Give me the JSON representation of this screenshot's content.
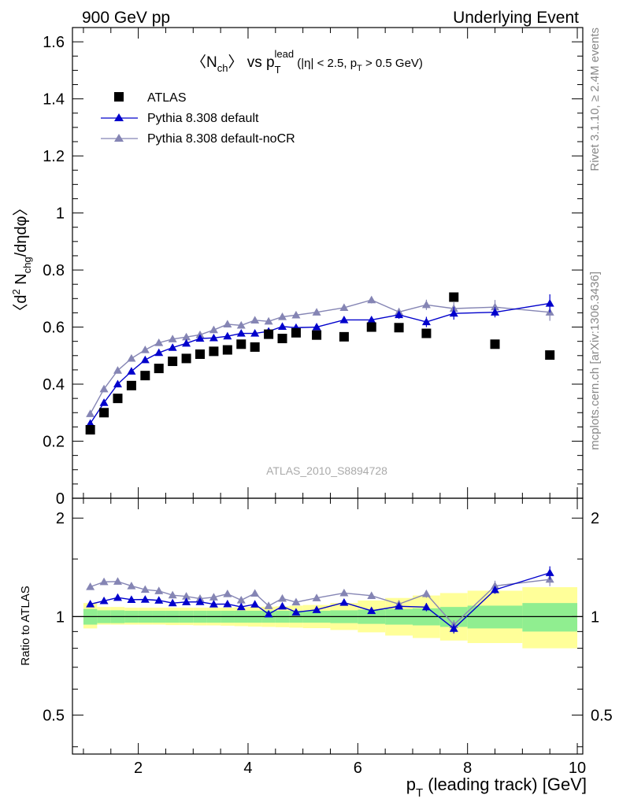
{
  "header": {
    "left": "900 GeV pp",
    "right": "Underlying Event"
  },
  "side_text": {
    "rivet": "Rivet 3.1.10, ≥ 2.4M events",
    "mcplots": "mcplots.cern.ch [arXiv:1306.3436]"
  },
  "watermark": "ATLAS_2010_S8894728",
  "title": {
    "n": "〈N",
    "n_sub": "ch",
    "vs": "〉 vs p",
    "p_sub": "T",
    "p_sup": "lead",
    "cuts_a": " (|η| < 2.5, p",
    "cuts_sub": "T",
    "cuts_b": " > 0.5 GeV)"
  },
  "ylabel_main": {
    "a": "〈d",
    "sup": "2",
    "b": " N",
    "sub": "chg",
    "c": "/dηdφ〉"
  },
  "ylabel_ratio": "Ratio to ATLAS",
  "xlabel": {
    "p": "p",
    "sub": "T",
    "rest": " (leading track) [GeV]"
  },
  "legend": [
    {
      "label": "ATLAS",
      "color": "#000000",
      "marker": "square"
    },
    {
      "label": "Pythia 8.308 default",
      "color": "#0000cc",
      "marker": "triangle"
    },
    {
      "label": "Pythia 8.308 default-noCR",
      "color": "#8585b4",
      "marker": "triangle"
    }
  ],
  "chart_data": {
    "type": "scatter",
    "xlim": [
      0.8,
      10.1
    ],
    "ylim": [
      0,
      1.65
    ],
    "ratio_ylim": [
      0.38,
      2.3
    ],
    "ratio_scale": "log",
    "x_ticks": [
      2,
      4,
      6,
      8,
      10
    ],
    "y_ticks": [
      0,
      0.2,
      0.4,
      0.6,
      0.8,
      1,
      1.2,
      1.4,
      1.6
    ],
    "ratio_ticks": [
      0.5,
      1,
      2
    ],
    "x": [
      1.125,
      1.375,
      1.625,
      1.875,
      2.125,
      2.375,
      2.625,
      2.875,
      3.125,
      3.375,
      3.625,
      3.875,
      4.125,
      4.375,
      4.625,
      4.875,
      5.25,
      5.75,
      6.25,
      6.75,
      7.25,
      7.75,
      8.5,
      9.5
    ],
    "xerr": [
      0.125,
      0.125,
      0.125,
      0.125,
      0.125,
      0.125,
      0.125,
      0.125,
      0.125,
      0.125,
      0.125,
      0.125,
      0.125,
      0.125,
      0.125,
      0.125,
      0.25,
      0.25,
      0.25,
      0.25,
      0.25,
      0.25,
      0.5,
      0.5
    ],
    "series": [
      {
        "name": "ATLAS",
        "values": [
          0.24,
          0.3,
          0.35,
          0.395,
          0.43,
          0.455,
          0.48,
          0.49,
          0.505,
          0.515,
          0.52,
          0.54,
          0.53,
          0.575,
          0.56,
          0.58,
          0.572,
          0.566,
          0.6,
          0.598,
          0.578,
          0.705,
          0.54,
          0.502
        ]
      },
      {
        "name": "Pythia 8.308 default",
        "values": [
          0.262,
          0.335,
          0.4,
          0.445,
          0.485,
          0.51,
          0.528,
          0.543,
          0.56,
          0.562,
          0.568,
          0.578,
          0.578,
          0.585,
          0.602,
          0.598,
          0.6,
          0.625,
          0.625,
          0.643,
          0.618,
          0.648,
          0.652,
          0.683
        ],
        "errors": [
          0.004,
          0.004,
          0.004,
          0.004,
          0.004,
          0.005,
          0.005,
          0.005,
          0.005,
          0.006,
          0.006,
          0.006,
          0.006,
          0.007,
          0.007,
          0.008,
          0.008,
          0.01,
          0.012,
          0.014,
          0.018,
          0.022,
          0.018,
          0.032
        ]
      },
      {
        "name": "Pythia 8.308 default-noCR",
        "values": [
          0.296,
          0.383,
          0.448,
          0.49,
          0.52,
          0.545,
          0.558,
          0.565,
          0.573,
          0.59,
          0.61,
          0.606,
          0.624,
          0.62,
          0.636,
          0.642,
          0.652,
          0.668,
          0.695,
          0.653,
          0.678,
          0.665,
          0.67,
          0.652
        ],
        "errors": [
          0.004,
          0.004,
          0.004,
          0.004,
          0.004,
          0.005,
          0.005,
          0.005,
          0.005,
          0.006,
          0.006,
          0.006,
          0.006,
          0.007,
          0.007,
          0.008,
          0.008,
          0.01,
          0.012,
          0.014,
          0.018,
          0.022,
          0.025,
          0.03
        ]
      }
    ],
    "ratio_bands": {
      "stat_low": [
        0.945,
        0.955,
        0.955,
        0.958,
        0.958,
        0.958,
        0.958,
        0.958,
        0.958,
        0.958,
        0.958,
        0.958,
        0.958,
        0.958,
        0.958,
        0.958,
        0.958,
        0.955,
        0.95,
        0.945,
        0.94,
        0.93,
        0.92,
        0.9
      ],
      "stat_high": [
        1.055,
        1.045,
        1.045,
        1.042,
        1.042,
        1.042,
        1.042,
        1.042,
        1.042,
        1.042,
        1.042,
        1.042,
        1.042,
        1.042,
        1.042,
        1.042,
        1.042,
        1.045,
        1.05,
        1.055,
        1.06,
        1.07,
        1.08,
        1.1
      ],
      "syst_low": [
        0.92,
        0.945,
        0.945,
        0.945,
        0.945,
        0.945,
        0.942,
        0.942,
        0.94,
        0.94,
        0.938,
        0.935,
        0.932,
        0.93,
        0.928,
        0.925,
        0.922,
        0.91,
        0.895,
        0.875,
        0.86,
        0.845,
        0.83,
        0.8
      ],
      "syst_high": [
        1.1,
        1.07,
        1.07,
        1.065,
        1.065,
        1.065,
        1.065,
        1.065,
        1.065,
        1.065,
        1.065,
        1.068,
        1.07,
        1.072,
        1.075,
        1.08,
        1.085,
        1.1,
        1.12,
        1.14,
        1.16,
        1.18,
        1.2,
        1.23
      ]
    }
  }
}
